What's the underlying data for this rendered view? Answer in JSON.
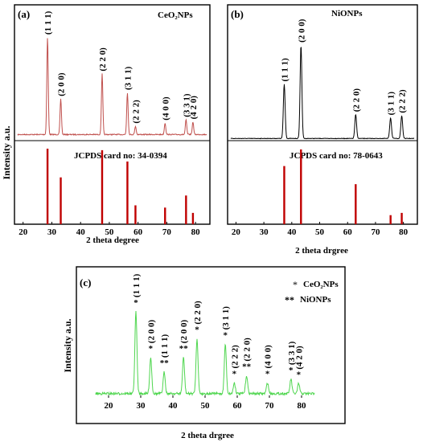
{
  "chart_data": [
    {
      "panel": "(a)",
      "type": "line",
      "legend": "CeO₂NPs",
      "xlabel": "2 theta degree",
      "ylabel": "Intensity a.u.",
      "xlim": [
        17,
        85
      ],
      "xticks": [
        20,
        30,
        40,
        50,
        60,
        70,
        80
      ],
      "line_color": "#c0504d",
      "peaks": [
        {
          "x": 28.5,
          "h": 0.93,
          "w": 0.35,
          "label": "(1 1 1)"
        },
        {
          "x": 33.1,
          "h": 0.34,
          "w": 0.35,
          "label": "(2 0 0)"
        },
        {
          "x": 47.5,
          "h": 0.58,
          "w": 0.35,
          "label": "(2 2 0)"
        },
        {
          "x": 56.3,
          "h": 0.4,
          "w": 0.35,
          "label": "(3 1 1)"
        },
        {
          "x": 59.1,
          "h": 0.08,
          "w": 0.35,
          "label": "(2 2 2)"
        },
        {
          "x": 69.4,
          "h": 0.11,
          "w": 0.35,
          "label": "(4 0 0)"
        },
        {
          "x": 76.7,
          "h": 0.14,
          "w": 0.35,
          "label": "(3 3 1)"
        },
        {
          "x": 79.1,
          "h": 0.12,
          "w": 0.35,
          "label": "(4 2 0)"
        }
      ],
      "reference": {
        "label": "JCPDS card no: 34-0394",
        "color": "#c00000",
        "lines": [
          {
            "x": 28.5,
            "h": 1.0
          },
          {
            "x": 33.1,
            "h": 0.62
          },
          {
            "x": 47.5,
            "h": 0.98
          },
          {
            "x": 56.3,
            "h": 0.83
          },
          {
            "x": 59.1,
            "h": 0.25
          },
          {
            "x": 69.4,
            "h": 0.22
          },
          {
            "x": 76.7,
            "h": 0.38
          },
          {
            "x": 79.1,
            "h": 0.15
          }
        ]
      }
    },
    {
      "panel": "(b)",
      "type": "line",
      "legend": "NiONPs",
      "xlabel": "2 theta drgree",
      "ylabel": "",
      "xlim": [
        17,
        85
      ],
      "xticks": [
        20,
        30,
        40,
        50,
        60,
        70,
        80
      ],
      "line_color": "#000000",
      "peaks": [
        {
          "x": 37.3,
          "h": 0.5,
          "w": 0.45,
          "label": "(1 1 1)"
        },
        {
          "x": 43.3,
          "h": 0.86,
          "w": 0.45,
          "label": "(2 0 0)"
        },
        {
          "x": 62.9,
          "h": 0.22,
          "w": 0.45,
          "label": "(2 2 0)"
        },
        {
          "x": 75.4,
          "h": 0.19,
          "w": 0.45,
          "label": "(3 1 1)"
        },
        {
          "x": 79.4,
          "h": 0.21,
          "w": 0.45,
          "label": "(2 2 2)"
        }
      ],
      "reference": {
        "label": "JCPDS card no: 78-0643",
        "color": "#c00000",
        "lines": [
          {
            "x": 37.3,
            "h": 0.77
          },
          {
            "x": 43.3,
            "h": 0.99
          },
          {
            "x": 62.9,
            "h": 0.53
          },
          {
            "x": 75.4,
            "h": 0.12
          },
          {
            "x": 79.4,
            "h": 0.15
          }
        ]
      }
    },
    {
      "panel": "(c)",
      "type": "line",
      "xlabel": "2 theta drgree",
      "ylabel": "Intensity a.u.",
      "xlim": [
        15,
        85
      ],
      "xticks": [
        20,
        30,
        40,
        50,
        60,
        70,
        80
      ],
      "line_color": "#4fd64f",
      "legend_entries": [
        {
          "marker": "*",
          "label": "CeO₂NPs",
          "color": "#c0504d"
        },
        {
          "marker": "**",
          "label": "NiONPs",
          "color": "#000000"
        }
      ],
      "peaks": [
        {
          "x": 28.5,
          "h": 0.91,
          "w": 0.45,
          "label": "(1 1 1)",
          "phase": "CeO2"
        },
        {
          "x": 33.1,
          "h": 0.4,
          "w": 0.45,
          "label": "(2 0 0)",
          "phase": "CeO2"
        },
        {
          "x": 37.3,
          "h": 0.24,
          "w": 0.45,
          "label": "(1 1 1)",
          "phase": "NiO"
        },
        {
          "x": 43.3,
          "h": 0.4,
          "w": 0.45,
          "label": "(2 0 0)",
          "phase": "NiO"
        },
        {
          "x": 47.5,
          "h": 0.61,
          "w": 0.45,
          "label": "(2 2 0)",
          "phase": "CeO2"
        },
        {
          "x": 56.3,
          "h": 0.55,
          "w": 0.45,
          "label": "(3 1 1)",
          "phase": "CeO2"
        },
        {
          "x": 59.1,
          "h": 0.12,
          "w": 0.45,
          "label": "(2 2 2)",
          "phase": "CeO2"
        },
        {
          "x": 62.9,
          "h": 0.2,
          "w": 0.45,
          "label": "(2 2 0)",
          "phase": "NiO"
        },
        {
          "x": 69.4,
          "h": 0.12,
          "w": 0.45,
          "label": "(4 0 0)",
          "phase": "CeO2"
        },
        {
          "x": 76.7,
          "h": 0.16,
          "w": 0.45,
          "label": "(3 3 1)",
          "phase": "CeO2"
        },
        {
          "x": 79.1,
          "h": 0.11,
          "w": 0.45,
          "label": "(4 2 0)",
          "phase": "CeO2"
        }
      ]
    }
  ]
}
